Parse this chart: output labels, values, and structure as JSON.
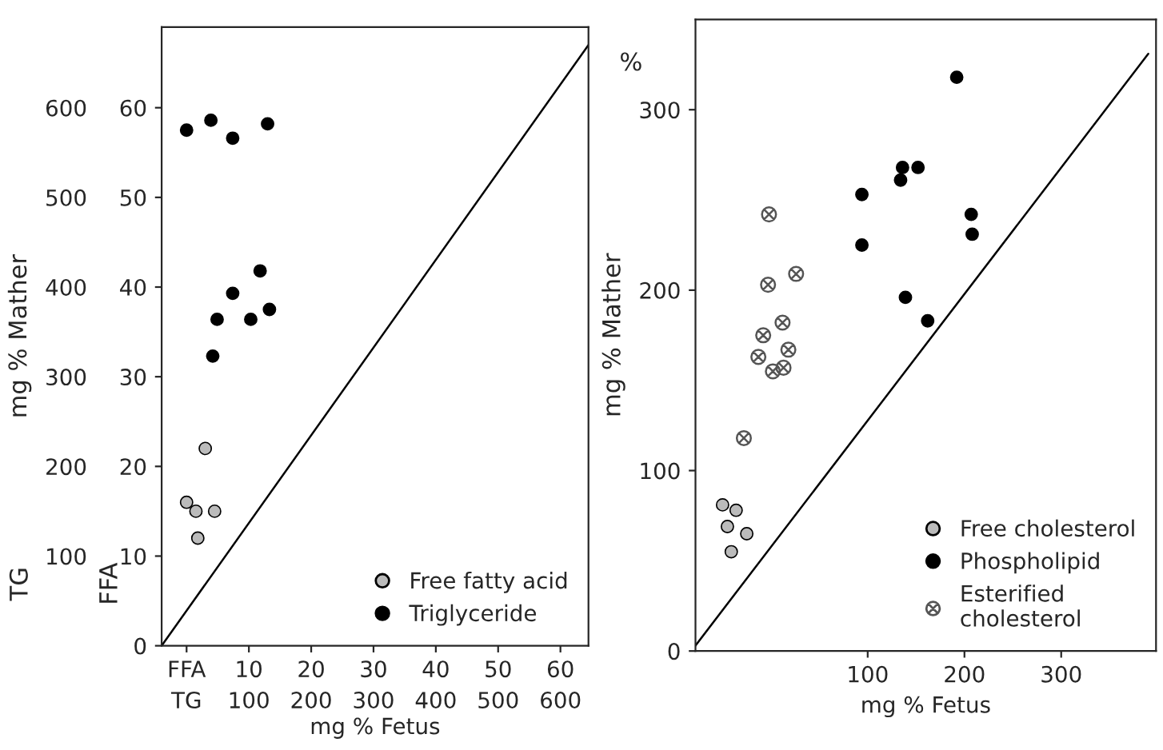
{
  "chart_data": [
    {
      "type": "scatter",
      "x2label": "mg % Fetus",
      "y2label": "mg % Mather",
      "annotations": [
        "TG",
        "FFA"
      ],
      "xlim": [
        -4,
        64.5
      ],
      "ylim": [
        0,
        69
      ],
      "xticks": [
        {
          "value": 0,
          "label": "FFA"
        },
        10,
        20,
        30,
        40,
        50,
        60
      ],
      "yticks": [
        0,
        10,
        20,
        30,
        40,
        50,
        60
      ],
      "x2lim": [
        -40,
        645
      ],
      "x2ticks": [
        {
          "value": 0,
          "label": "TG"
        },
        100,
        200,
        300,
        400,
        500,
        600
      ],
      "y2lim": [
        0,
        690
      ],
      "y2ticks": [
        100,
        200,
        300,
        400,
        500,
        600
      ],
      "grid": false,
      "legend": "bottom right",
      "marker": "circle",
      "series": [
        {
          "name": "Free fatty acid",
          "color": "#bbbbbb",
          "x": [
            0,
            1.5,
            4.5,
            1.8,
            3
          ],
          "values": [
            16,
            15,
            15,
            12,
            22
          ]
        },
        {
          "name": "Triglyceride",
          "color": "#000000",
          "x": [
            0,
            3.9,
            7.4,
            13,
            11.8,
            7.4,
            4.9,
            10.3,
            13.3,
            4.2
          ],
          "values": [
            57.5,
            58.6,
            56.6,
            58.2,
            41.8,
            39.3,
            36.4,
            36.4,
            37.5,
            32.3
          ]
        },
        {
          "type": "line",
          "color": "#000000",
          "marker": "none",
          "x": [
            -4,
            64.5
          ],
          "values": [
            0,
            67
          ]
        }
      ]
    },
    {
      "type": "scatter",
      "xlabel": "mg % Fetus",
      "ylabel": "mg % Mather",
      "annotations": [
        "%"
      ],
      "xlim": [
        -78,
        398
      ],
      "ylim": [
        0,
        350
      ],
      "xticks": [
        100,
        200,
        300
      ],
      "yticks": [
        0,
        100,
        200,
        300
      ],
      "grid": false,
      "legend": "bottom right",
      "marker": "circle",
      "series": [
        {
          "name": "Free cholesterol",
          "color": "#bbbbbb",
          "x": [
            -50,
            -36,
            -25,
            -41,
            -45
          ],
          "values": [
            81,
            78,
            65,
            55,
            69
          ]
        },
        {
          "name": "Phospholipid",
          "color": "#000000",
          "x": [
            192,
            136,
            152,
            134,
            94,
            207,
            208,
            94,
            139,
            162
          ],
          "values": [
            318,
            268,
            268,
            261,
            253,
            242,
            231,
            225,
            196,
            183
          ]
        },
        {
          "name": "Esterified\ncholesterol",
          "color": "#555555",
          "marker": "cross",
          "x": [
            -2,
            26,
            -3,
            12,
            -8,
            -13,
            18,
            2,
            13,
            -28
          ],
          "values": [
            242,
            209,
            203,
            182,
            175,
            163,
            167,
            155,
            157,
            118
          ]
        },
        {
          "type": "line",
          "color": "#000000",
          "marker": "none",
          "x": [
            -78,
            390
          ],
          "values": [
            3,
            331
          ]
        }
      ]
    }
  ]
}
